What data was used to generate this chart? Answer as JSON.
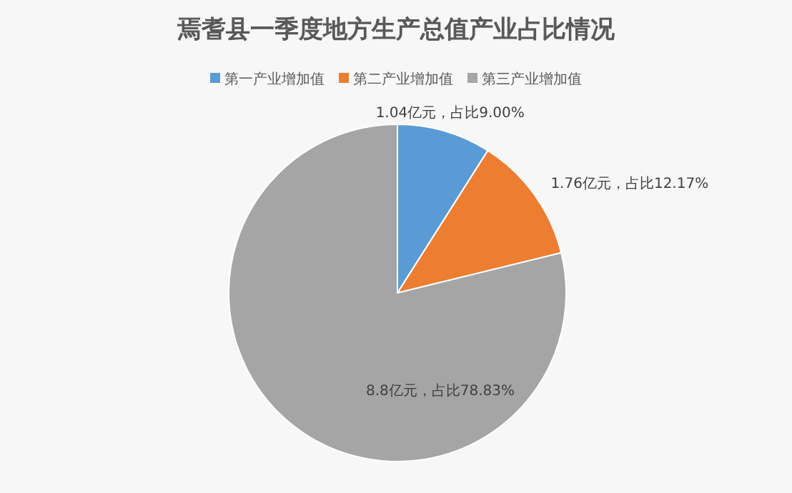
{
  "chart_data": {
    "type": "pie",
    "title": "焉耆县一季度地方生产总值产业占比情况",
    "categories": [
      "第一产业增加值",
      "第二产业增加值",
      "第三产业增加值"
    ],
    "values": [
      9.0,
      12.17,
      78.83
    ],
    "value_labels": [
      "1.04亿元，占比9.00%",
      "1.76亿元，占比12.17%",
      "8.8亿元，占比78.83%"
    ],
    "colors": [
      "#5b9bd5",
      "#ed7d31",
      "#a5a5a5"
    ],
    "legend": "top"
  }
}
